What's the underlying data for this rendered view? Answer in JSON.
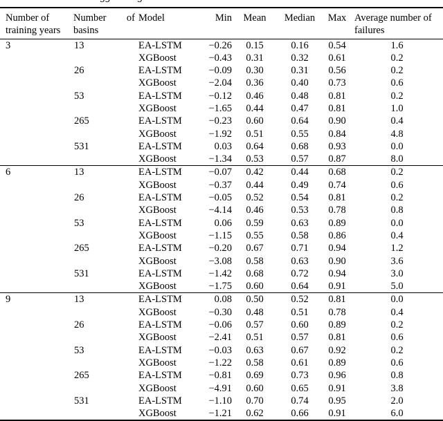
{
  "page": {
    "background": "#ffffff",
    "text_color": "#000000"
  },
  "caption_fragment": {
    "pieces": [
      "gg",
      "g"
    ]
  },
  "table": {
    "header": {
      "years": "Number of training years",
      "basins": "Number of basins",
      "model": "Model",
      "min": "Min",
      "mean": "Mean",
      "median": "Median",
      "max": "Max",
      "failures": "Average number of failures"
    },
    "rows": [
      {
        "years": "3",
        "basins": "13",
        "model": "EA-LSTM",
        "min": "−0.26",
        "mean": "0.15",
        "median": "0.16",
        "max": "0.54",
        "failures": "1.6",
        "block_start": false
      },
      {
        "years": "",
        "basins": "",
        "model": "XGBoost",
        "min": "−0.43",
        "mean": "0.31",
        "median": "0.32",
        "max": "0.61",
        "failures": "0.2",
        "block_start": false
      },
      {
        "years": "",
        "basins": "26",
        "model": "EA-LSTM",
        "min": "−0.09",
        "mean": "0.30",
        "median": "0.31",
        "max": "0.56",
        "failures": "0.2",
        "block_start": false
      },
      {
        "years": "",
        "basins": "",
        "model": "XGBoost",
        "min": "−2.04",
        "mean": "0.36",
        "median": "0.40",
        "max": "0.73",
        "failures": "0.6",
        "block_start": false
      },
      {
        "years": "",
        "basins": "53",
        "model": "EA-LSTM",
        "min": "−0.12",
        "mean": "0.46",
        "median": "0.48",
        "max": "0.81",
        "failures": "0.2",
        "block_start": false
      },
      {
        "years": "",
        "basins": "",
        "model": "XGBoost",
        "min": "−1.65",
        "mean": "0.44",
        "median": "0.47",
        "max": "0.81",
        "failures": "1.0",
        "block_start": false
      },
      {
        "years": "",
        "basins": "265",
        "model": "EA-LSTM",
        "min": "−0.23",
        "mean": "0.60",
        "median": "0.64",
        "max": "0.90",
        "failures": "0.4",
        "block_start": false
      },
      {
        "years": "",
        "basins": "",
        "model": "XGBoost",
        "min": "−1.92",
        "mean": "0.51",
        "median": "0.55",
        "max": "0.84",
        "failures": "4.8",
        "block_start": false
      },
      {
        "years": "",
        "basins": "531",
        "model": "EA-LSTM",
        "min": "0.03",
        "mean": "0.64",
        "median": "0.68",
        "max": "0.93",
        "failures": "0.0",
        "block_start": false
      },
      {
        "years": "",
        "basins": "",
        "model": "XGBoost",
        "min": "−1.34",
        "mean": "0.53",
        "median": "0.57",
        "max": "0.87",
        "failures": "8.0",
        "block_start": false
      },
      {
        "years": "6",
        "basins": "13",
        "model": "EA-LSTM",
        "min": "−0.07",
        "mean": "0.42",
        "median": "0.44",
        "max": "0.68",
        "failures": "0.2",
        "block_start": true
      },
      {
        "years": "",
        "basins": "",
        "model": "XGBoost",
        "min": "−0.37",
        "mean": "0.44",
        "median": "0.49",
        "max": "0.74",
        "failures": "0.6",
        "block_start": false
      },
      {
        "years": "",
        "basins": "26",
        "model": "EA-LSTM",
        "min": "−0.05",
        "mean": "0.52",
        "median": "0.54",
        "max": "0.81",
        "failures": "0.2",
        "block_start": false
      },
      {
        "years": "",
        "basins": "",
        "model": "XGBoost",
        "min": "−4.14",
        "mean": "0.46",
        "median": "0.53",
        "max": "0.78",
        "failures": "0.8",
        "block_start": false
      },
      {
        "years": "",
        "basins": "53",
        "model": "EA-LSTM",
        "min": "0.06",
        "mean": "0.59",
        "median": "0.63",
        "max": "0.89",
        "failures": "0.0",
        "block_start": false
      },
      {
        "years": "",
        "basins": "",
        "model": "XGBoost",
        "min": "−1.15",
        "mean": "0.55",
        "median": "0.58",
        "max": "0.86",
        "failures": "0.4",
        "block_start": false
      },
      {
        "years": "",
        "basins": "265",
        "model": "EA-LSTM",
        "min": "−0.20",
        "mean": "0.67",
        "median": "0.71",
        "max": "0.94",
        "failures": "1.2",
        "block_start": false
      },
      {
        "years": "",
        "basins": "",
        "model": "XGBoost",
        "min": "−3.08",
        "mean": "0.58",
        "median": "0.63",
        "max": "0.90",
        "failures": "3.6",
        "block_start": false
      },
      {
        "years": "",
        "basins": "531",
        "model": "EA-LSTM",
        "min": "−1.42",
        "mean": "0.68",
        "median": "0.72",
        "max": "0.94",
        "failures": "3.0",
        "block_start": false
      },
      {
        "years": "",
        "basins": "",
        "model": "XGBoost",
        "min": "−1.75",
        "mean": "0.60",
        "median": "0.64",
        "max": "0.91",
        "failures": "5.0",
        "block_start": false
      },
      {
        "years": "9",
        "basins": "13",
        "model": "EA-LSTM",
        "min": "0.08",
        "mean": "0.50",
        "median": "0.52",
        "max": "0.81",
        "failures": "0.0",
        "block_start": true
      },
      {
        "years": "",
        "basins": "",
        "model": "XGBoost",
        "min": "−0.30",
        "mean": "0.48",
        "median": "0.51",
        "max": "0.78",
        "failures": "0.4",
        "block_start": false
      },
      {
        "years": "",
        "basins": "26",
        "model": "EA-LSTM",
        "min": "−0.06",
        "mean": "0.57",
        "median": "0.60",
        "max": "0.89",
        "failures": "0.2",
        "block_start": false
      },
      {
        "years": "",
        "basins": "",
        "model": "XGBoost",
        "min": "−2.41",
        "mean": "0.51",
        "median": "0.57",
        "max": "0.81",
        "failures": "0.6",
        "block_start": false
      },
      {
        "years": "",
        "basins": "53",
        "model": "EA-LSTM",
        "min": "−0.03",
        "mean": "0.63",
        "median": "0.67",
        "max": "0.92",
        "failures": "0.2",
        "block_start": false
      },
      {
        "years": "",
        "basins": "",
        "model": "XGBoost",
        "min": "−1.22",
        "mean": "0.58",
        "median": "0.61",
        "max": "0.89",
        "failures": "0.6",
        "block_start": false
      },
      {
        "years": "",
        "basins": "265",
        "model": "EA-LSTM",
        "min": "−0.81",
        "mean": "0.69",
        "median": "0.73",
        "max": "0.96",
        "failures": "0.8",
        "block_start": false
      },
      {
        "years": "",
        "basins": "",
        "model": "XGBoost",
        "min": "−4.91",
        "mean": "0.60",
        "median": "0.65",
        "max": "0.91",
        "failures": "3.8",
        "block_start": false
      },
      {
        "years": "",
        "basins": "531",
        "model": "EA-LSTM",
        "min": "−1.10",
        "mean": "0.70",
        "median": "0.74",
        "max": "0.95",
        "failures": "2.0",
        "block_start": false
      },
      {
        "years": "",
        "basins": "",
        "model": "XGBoost",
        "min": "−1.21",
        "mean": "0.62",
        "median": "0.66",
        "max": "0.91",
        "failures": "6.0",
        "block_start": false
      }
    ]
  }
}
